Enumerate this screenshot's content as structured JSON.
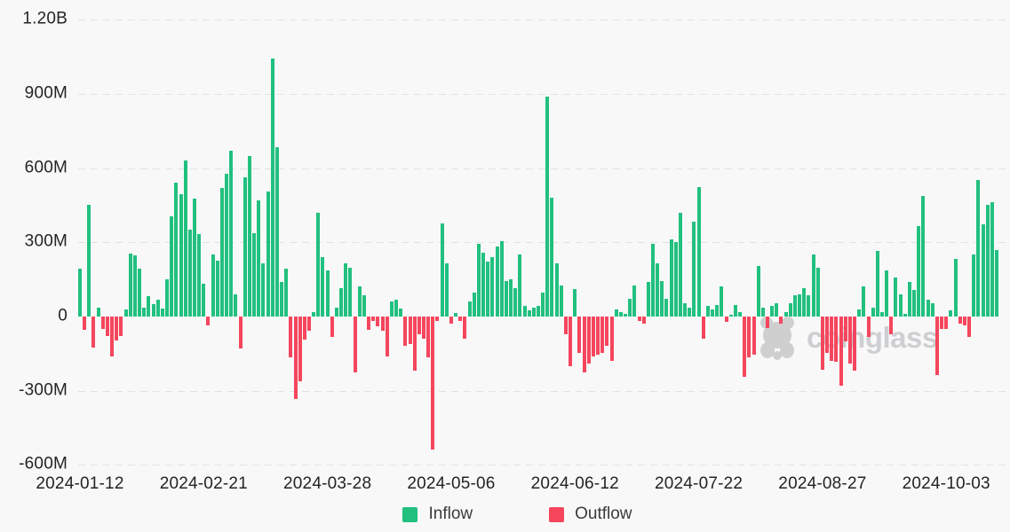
{
  "colors": {
    "inflow": "#21c07f",
    "outflow": "#f5465d",
    "background": "#f8f8f8",
    "grid": "#e2e2e2",
    "axis_text": "#242424",
    "watermark": "#c6c9cc"
  },
  "watermark": {
    "text": "coinglass"
  },
  "chart_data": {
    "type": "bar",
    "title": "",
    "xlabel": "",
    "ylabel": "",
    "values_unit": "USD millions",
    "ylim": [
      -600,
      1200
    ],
    "grid": "horizontal dashed",
    "legend_position": "bottom center",
    "legend": [
      {
        "label": "Inflow",
        "color": "#21c07f"
      },
      {
        "label": "Outflow",
        "color": "#f5465d"
      }
    ],
    "y_ticks": [
      {
        "label": "1.20B",
        "value": 1200
      },
      {
        "label": "900M",
        "value": 900
      },
      {
        "label": "600M",
        "value": 600
      },
      {
        "label": "300M",
        "value": 300
      },
      {
        "label": "0",
        "value": 0
      },
      {
        "label": "-300M",
        "value": -300
      },
      {
        "label": "-600M",
        "value": -600
      }
    ],
    "x_ticks": [
      {
        "label": "2024-01-12",
        "bar_index": 0
      },
      {
        "label": "2024-02-21",
        "bar_index": 27
      },
      {
        "label": "2024-03-28",
        "bar_index": 54
      },
      {
        "label": "2024-05-06",
        "bar_index": 81
      },
      {
        "label": "2024-06-12",
        "bar_index": 108
      },
      {
        "label": "2024-07-22",
        "bar_index": 135
      },
      {
        "label": "2024-08-27",
        "bar_index": 162
      },
      {
        "label": "2024-10-03",
        "bar_index": 189
      }
    ],
    "values": [
      195,
      -55,
      450,
      -125,
      35,
      -50,
      -80,
      -160,
      -95,
      -80,
      30,
      255,
      248,
      195,
      37,
      81,
      49,
      67,
      31,
      150,
      406,
      543,
      495,
      632,
      352,
      477,
      334,
      132,
      -35,
      251,
      227,
      521,
      578,
      670,
      88,
      -130,
      561,
      650,
      336,
      471,
      214,
      507,
      1043,
      686,
      139,
      193,
      -164,
      -332,
      -261,
      -93,
      -57,
      18,
      418,
      239,
      186,
      -82,
      36,
      114,
      214,
      196,
      -225,
      121,
      86,
      -54,
      -18,
      -39,
      -57,
      -161,
      60,
      68,
      32,
      -118,
      -111,
      -218,
      -71,
      -89,
      -164,
      -536,
      -18,
      375,
      214,
      -29,
      15,
      -18,
      -89,
      60,
      96,
      293,
      257,
      221,
      239,
      282,
      304,
      143,
      150,
      114,
      250,
      43,
      25,
      36,
      43,
      96,
      889,
      482,
      214,
      125,
      -71,
      -200,
      110,
      -146,
      -225,
      -189,
      -161,
      -154,
      -146,
      -118,
      -179,
      30,
      18,
      12,
      71,
      125,
      -18,
      -29,
      139,
      293,
      214,
      143,
      71,
      311,
      300,
      418,
      54,
      36,
      382,
      525,
      -89,
      43,
      29,
      46,
      121,
      -21,
      5,
      48,
      18,
      -243,
      -164,
      -154,
      204,
      36,
      -46,
      43,
      54,
      -30,
      18,
      54,
      86,
      89,
      114,
      86,
      250,
      196,
      -214,
      -146,
      -179,
      -182,
      -279,
      -100,
      -189,
      -218,
      29,
      121,
      -82,
      36,
      264,
      18,
      186,
      -71,
      157,
      89,
      10,
      139,
      107,
      364,
      489,
      68,
      54,
      -235,
      -50,
      -50,
      25,
      232,
      -29,
      -36,
      -82,
      250,
      553,
      371,
      453,
      464,
      268
    ]
  }
}
